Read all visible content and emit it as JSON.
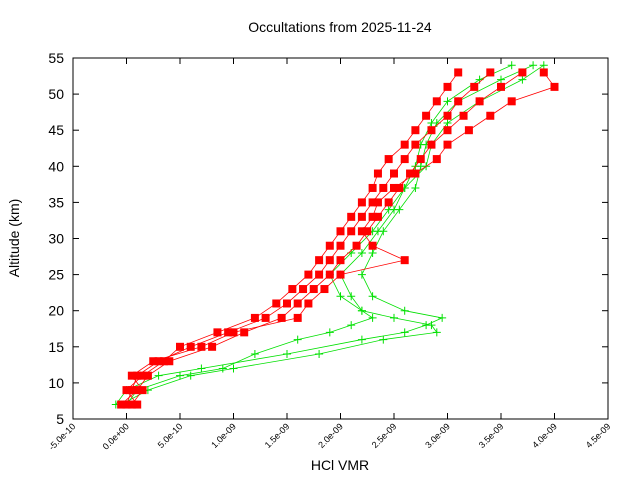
{
  "chart_data": {
    "type": "profile",
    "title": "Occultations from 2025-11-24",
    "xlabel": "HCl VMR",
    "ylabel": "Altitude (km)",
    "xlim": [
      -5e-10,
      4.5e-09
    ],
    "xticks": [
      {
        "value": -5e-10,
        "label": "-5.0e-10"
      },
      {
        "value": 0,
        "label": "0.0e+00"
      },
      {
        "value": 5e-10,
        "label": "5.0e-10"
      },
      {
        "value": 1e-09,
        "label": "1.0e-09"
      },
      {
        "value": 1.5e-09,
        "label": "1.5e-09"
      },
      {
        "value": 2e-09,
        "label": "2.0e-09"
      },
      {
        "value": 2.5e-09,
        "label": "2.5e-09"
      },
      {
        "value": 3e-09,
        "label": "3.0e-09"
      },
      {
        "value": 3.5e-09,
        "label": "3.5e-09"
      },
      {
        "value": 4e-09,
        "label": "4.0e-09"
      },
      {
        "value": 4.5e-09,
        "label": "4.5e-09"
      }
    ],
    "ylim": [
      5,
      55
    ],
    "yticks": [
      5,
      10,
      15,
      20,
      25,
      30,
      35,
      40,
      45,
      50,
      55
    ],
    "series": [
      {
        "color": "#00e000",
        "marker": "plus",
        "x": [
          -1e-10,
          0,
          3e-10,
          7e-10,
          1.5e-09,
          2.2e-09,
          2.6e-09,
          2.8e-09,
          2.95e-09,
          2.6e-09,
          2.3e-09,
          2.2e-09,
          2.3e-09,
          2.4e-09,
          2.55e-09,
          2.7e-09,
          2.75e-09,
          2.8e-09,
          2.9e-09,
          3.1e-09,
          3.5e-09,
          3.8e-09
        ],
        "values": [
          7,
          9,
          11,
          12,
          14,
          16,
          17,
          18,
          19,
          20,
          22,
          25,
          28,
          31,
          34,
          37,
          40,
          43,
          46,
          49,
          52,
          54
        ]
      },
      {
        "color": "#00e000",
        "marker": "plus",
        "x": [
          -5e-11,
          2e-10,
          6e-10,
          1e-09,
          1.8e-09,
          2.4e-09,
          2.9e-09,
          2.85e-09,
          2.5e-09,
          2.2e-09,
          2.1e-09,
          2e-09,
          2.2e-09,
          2.35e-09,
          2.5e-09,
          2.6e-09,
          2.8e-09,
          2.85e-09,
          3e-09,
          3.3e-09,
          3.7e-09,
          3.9e-09
        ],
        "values": [
          7,
          9,
          11,
          12,
          14,
          16,
          17,
          18,
          19,
          20,
          22,
          25,
          28,
          31,
          34,
          37,
          40,
          43,
          46,
          49,
          52,
          54
        ]
      },
      {
        "color": "#00e000",
        "marker": "plus",
        "x": [
          0,
          1e-10,
          5e-10,
          9e-10,
          1.2e-09,
          1.6e-09,
          1.9e-09,
          2.1e-09,
          2.3e-09,
          2.2e-09,
          2e-09,
          1.9e-09,
          2.1e-09,
          2.3e-09,
          2.45e-09,
          2.6e-09,
          2.7e-09,
          2.75e-09,
          2.85e-09,
          3e-09,
          3.3e-09,
          3.6e-09
        ],
        "values": [
          7,
          9,
          11,
          12,
          14,
          16,
          17,
          18,
          19,
          20,
          22,
          25,
          28,
          31,
          34,
          37,
          40,
          43,
          46,
          49,
          52,
          54
        ]
      },
      {
        "color": "#ff0000",
        "marker": "square",
        "x": [
          0,
          5e-11,
          1e-10,
          3e-10,
          6e-10,
          9.5e-10,
          1.3e-09,
          1.5e-09,
          1.65e-09,
          1.8e-09,
          1.9e-09,
          2e-09,
          2.1e-09,
          2.2e-09,
          2.3e-09,
          2.4e-09,
          2.5e-09,
          2.6e-09,
          2.7e-09,
          2.85e-09,
          3e-09,
          3.1e-09,
          3.25e-09,
          3.4e-09
        ],
        "values": [
          7,
          9,
          11,
          13,
          15,
          17,
          19,
          21,
          23,
          25,
          27,
          29,
          31,
          33,
          35,
          37,
          39,
          41,
          43,
          45,
          47,
          49,
          51,
          53
        ]
      },
      {
        "color": "#ff0000",
        "marker": "square",
        "x": [
          -5e-11,
          1e-10,
          2e-10,
          4e-10,
          8e-10,
          1.1e-09,
          1.45e-09,
          1.6e-09,
          1.75e-09,
          1.9e-09,
          2e-09,
          2.15e-09,
          2.25e-09,
          2.35e-09,
          2.45e-09,
          2.55e-09,
          2.65e-09,
          2.75e-09,
          2.85e-09,
          3e-09,
          3.15e-09,
          3.3e-09,
          3.5e-09,
          3.7e-09
        ],
        "values": [
          7,
          9,
          11,
          13,
          15,
          17,
          19,
          21,
          23,
          25,
          27,
          29,
          31,
          33,
          35,
          37,
          39,
          41,
          43,
          45,
          47,
          49,
          51,
          53
        ]
      },
      {
        "color": "#ff0000",
        "marker": "square",
        "x": [
          1e-10,
          0,
          1.5e-10,
          3.5e-10,
          5e-10,
          8.5e-10,
          1.2e-09,
          1.4e-09,
          1.55e-09,
          1.7e-09,
          1.8e-09,
          1.9e-09,
          2e-09,
          2.1e-09,
          2.2e-09,
          2.3e-09,
          2.35e-09,
          2.45e-09,
          2.6e-09,
          2.7e-09,
          2.8e-09,
          2.9e-09,
          3e-09,
          3.1e-09
        ],
        "values": [
          7,
          9,
          11,
          13,
          15,
          17,
          19,
          21,
          23,
          25,
          27,
          29,
          31,
          33,
          35,
          37,
          39,
          41,
          43,
          45,
          47,
          49,
          51,
          53
        ]
      },
      {
        "color": "#ff0000",
        "marker": "square",
        "x": [
          5e-11,
          1.5e-10,
          5e-11,
          2.5e-10,
          7e-10,
          1e-09,
          1.6e-09,
          1.7e-09,
          1.85e-09,
          2e-09,
          2.6e-09,
          2.3e-09,
          2.2e-09,
          2.3e-09,
          2.35e-09,
          2.5e-09,
          2.7e-09,
          2.9e-09,
          3e-09,
          3.2e-09,
          3.4e-09,
          3.6e-09,
          4e-09,
          3.9e-09
        ],
        "values": [
          7,
          9,
          11,
          13,
          15,
          17,
          19,
          21,
          23,
          25,
          27,
          29,
          31,
          33,
          35,
          37,
          39,
          41,
          43,
          45,
          47,
          49,
          51,
          53
        ]
      }
    ]
  }
}
